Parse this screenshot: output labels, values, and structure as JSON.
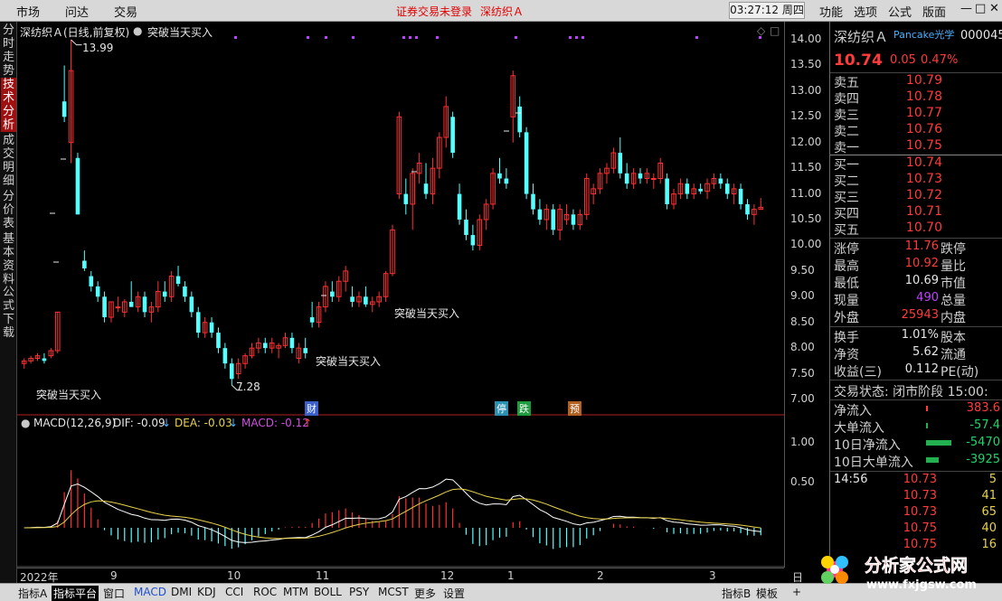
{
  "topbar": {
    "menus": [
      "市场",
      "问达",
      "交易"
    ],
    "status": "证券交易未登录",
    "stock": "深纺织Ａ",
    "clock": "03:27:12 周四",
    "right_menus": [
      "功能",
      "选项",
      "公式",
      "版面"
    ],
    "win_controls": [
      "—",
      "□",
      "✕"
    ]
  },
  "left_tabs": [
    {
      "label": "分时走势",
      "active": false
    },
    {
      "label": "技术分析",
      "active": true
    },
    {
      "label": "成交明细",
      "active": false
    },
    {
      "label": "分价表",
      "active": false
    },
    {
      "label": "基本资料",
      "active": false
    },
    {
      "label": "公式下载",
      "active": false
    }
  ],
  "chart_header": {
    "title": "深纺织Ａ(日线,前复权)",
    "indicator": "突破当天买入",
    "corner_icons": [
      "◇",
      "□"
    ]
  },
  "annotations": {
    "high": "13.99",
    "low": "7.28",
    "signal1": "突破当天买入",
    "signal2": "突破当天买入",
    "signal3": "突破当天买入"
  },
  "badges": [
    {
      "text": "财",
      "color": "#3a5fc8"
    },
    {
      "text": "停",
      "color": "#2a8fb0"
    },
    {
      "text": "跌",
      "color": "#1f9a3f"
    },
    {
      "text": "预",
      "color": "#b06020"
    }
  ],
  "macd_header": {
    "name": "MACD(12,26,9)",
    "dif": "DIF: -0.09",
    "dif_arrow": "↓",
    "dea": "DEA: -0.03",
    "dea_arrow": "↓",
    "macd": "MACD: -0.12",
    "macd_arrow": "↑"
  },
  "price_axis": [
    "14.00",
    "13.50",
    "13.00",
    "12.50",
    "12.00",
    "11.50",
    "11.00",
    "10.50",
    "10.00",
    "9.50",
    "9.00",
    "8.50",
    "8.00",
    "7.50",
    "7.00"
  ],
  "macd_axis": [
    "1.00",
    "0.50"
  ],
  "date_axis": [
    "2022年",
    "9",
    "10",
    "11",
    "12",
    "1",
    "2",
    "3"
  ],
  "quote": {
    "name": "深纺织Ａ",
    "tag": "Pancake光学",
    "code": "000045",
    "price": "10.74",
    "change": "0.05",
    "pct": "0.47%",
    "asks": [
      {
        "label": "卖五",
        "price": "10.79"
      },
      {
        "label": "卖四",
        "price": "10.78"
      },
      {
        "label": "卖三",
        "price": "10.77"
      },
      {
        "label": "卖二",
        "price": "10.76"
      },
      {
        "label": "卖一",
        "price": "10.75"
      }
    ],
    "bids": [
      {
        "label": "买一",
        "price": "10.74"
      },
      {
        "label": "买二",
        "price": "10.73"
      },
      {
        "label": "买三",
        "price": "10.72"
      },
      {
        "label": "买四",
        "price": "10.71"
      },
      {
        "label": "买五",
        "price": "10.70"
      }
    ],
    "stats": [
      {
        "label": "涨停",
        "value": "11.76",
        "cls": "red",
        "label2": "跌停"
      },
      {
        "label": "最高",
        "value": "10.92",
        "cls": "red",
        "label2": "量比"
      },
      {
        "label": "最低",
        "value": "10.69",
        "cls": "white",
        "label2": "市值"
      },
      {
        "label": "现量",
        "value": "490",
        "cls": "purple",
        "label2": "总量"
      },
      {
        "label": "外盘",
        "value": "25943",
        "cls": "red",
        "label2": "内盘"
      }
    ],
    "stats2": [
      {
        "label": "换手",
        "value": "1.01%",
        "label2": "股本"
      },
      {
        "label": "净资",
        "value": "5.62",
        "label2": "流通"
      },
      {
        "label": "收益(三)",
        "value": "0.112",
        "label2": "PE(动)"
      }
    ],
    "trade_state": "交易状态: 闭市阶段 15:00:",
    "flows": [
      {
        "label": "净流入",
        "value": "383.6",
        "cls": "red"
      },
      {
        "label": "大单流入",
        "value": "-57.4",
        "cls": "green"
      },
      {
        "label": "10日净流入",
        "value": "-5470",
        "cls": "green"
      },
      {
        "label": "10日大单流入",
        "value": "-3925",
        "cls": "green"
      }
    ],
    "ticks": [
      {
        "time": "14:56",
        "price": "10.73",
        "vol": "5"
      },
      {
        "time": "",
        "price": "10.73",
        "vol": "41"
      },
      {
        "time": "",
        "price": "10.73",
        "vol": "65"
      },
      {
        "time": "",
        "price": "10.75",
        "vol": "40"
      },
      {
        "time": "",
        "price": "10.75",
        "vol": "16"
      }
    ]
  },
  "bottom_tabs": [
    {
      "label": "指标A",
      "active": false,
      "blue": false
    },
    {
      "label": "指标平台",
      "active": true,
      "blue": false
    },
    {
      "label": "窗口",
      "active": false,
      "blue": false
    },
    {
      "label": "MACD",
      "active": false,
      "blue": true
    },
    {
      "label": "DMI",
      "active": false,
      "blue": false
    },
    {
      "label": "KDJ",
      "active": false,
      "blue": false
    },
    {
      "label": "CCI",
      "active": false,
      "blue": false
    },
    {
      "label": "ROC",
      "active": false,
      "blue": false
    },
    {
      "label": "MTM",
      "active": false,
      "blue": false
    },
    {
      "label": "BOLL",
      "active": false,
      "blue": false
    },
    {
      "label": "PSY",
      "active": false,
      "blue": false
    },
    {
      "label": "MCST",
      "active": false,
      "blue": false
    },
    {
      "label": "更多",
      "active": false,
      "blue": false
    },
    {
      "label": "设置",
      "active": false,
      "blue": false
    }
  ],
  "bottom_right_tabs": [
    "指标B",
    "模板",
    "+"
  ],
  "date_axis_right": "日线",
  "watermark": {
    "title": "分析家公式网",
    "url": "www.fxjgsw.com"
  },
  "chart_data": {
    "type": "candlestick",
    "ylim": [
      7.0,
      14.0
    ],
    "candles": [
      [
        7.7,
        7.8,
        7.6,
        7.75
      ],
      [
        7.75,
        7.85,
        7.7,
        7.8
      ],
      [
        7.8,
        7.9,
        7.75,
        7.85
      ],
      [
        7.8,
        7.9,
        7.7,
        7.75
      ],
      [
        7.85,
        8.0,
        7.8,
        7.95
      ],
      [
        7.95,
        8.7,
        7.9,
        8.7
      ],
      [
        12.8,
        13.5,
        12.4,
        12.5
      ],
      [
        12.0,
        14.0,
        11.6,
        13.4
      ],
      [
        11.7,
        11.8,
        10.6,
        10.6
      ],
      [
        9.7,
        9.9,
        9.5,
        9.55
      ],
      [
        9.4,
        9.5,
        9.1,
        9.2
      ],
      [
        9.2,
        9.3,
        8.9,
        9.0
      ],
      [
        9.0,
        9.1,
        8.5,
        8.6
      ],
      [
        8.6,
        8.9,
        8.5,
        8.9
      ],
      [
        8.8,
        9.0,
        8.7,
        8.8
      ],
      [
        8.7,
        8.95,
        8.6,
        8.9
      ],
      [
        8.9,
        9.3,
        8.8,
        8.8
      ],
      [
        8.8,
        9.1,
        8.7,
        9.0
      ],
      [
        9.0,
        9.1,
        8.6,
        8.7
      ],
      [
        8.7,
        8.9,
        8.5,
        8.8
      ],
      [
        8.8,
        9.3,
        8.7,
        9.1
      ],
      [
        9.1,
        9.3,
        8.9,
        9.0
      ],
      [
        9.0,
        9.5,
        8.9,
        9.4
      ],
      [
        9.4,
        9.6,
        9.2,
        9.25
      ],
      [
        9.2,
        9.3,
        8.9,
        9.0
      ],
      [
        9.0,
        9.1,
        8.6,
        8.7
      ],
      [
        8.7,
        8.8,
        8.2,
        8.3
      ],
      [
        8.3,
        8.6,
        8.2,
        8.5
      ],
      [
        8.5,
        8.6,
        8.2,
        8.3
      ],
      [
        8.3,
        8.4,
        7.9,
        8.0
      ],
      [
        8.0,
        8.1,
        7.6,
        7.7
      ],
      [
        7.7,
        7.8,
        7.28,
        7.4
      ],
      [
        7.5,
        7.8,
        7.4,
        7.7
      ],
      [
        7.7,
        7.9,
        7.6,
        7.85
      ],
      [
        7.85,
        8.1,
        7.8,
        8.0
      ],
      [
        8.0,
        8.2,
        7.9,
        8.1
      ],
      [
        8.1,
        8.2,
        7.9,
        8.0
      ],
      [
        8.0,
        8.2,
        7.9,
        8.1
      ],
      [
        8.0,
        8.1,
        7.8,
        8.05
      ],
      [
        8.05,
        8.3,
        8.0,
        8.2
      ],
      [
        8.2,
        8.3,
        7.9,
        8.0
      ],
      [
        7.8,
        8.1,
        7.7,
        8.0
      ],
      [
        8.0,
        8.2,
        7.8,
        7.9
      ],
      [
        8.6,
        8.9,
        8.4,
        8.5
      ],
      [
        8.5,
        8.9,
        8.4,
        8.8
      ],
      [
        8.8,
        9.3,
        8.7,
        9.2
      ],
      [
        9.1,
        9.3,
        8.9,
        9.0
      ],
      [
        9.0,
        9.4,
        8.9,
        9.3
      ],
      [
        9.3,
        9.6,
        9.1,
        9.5
      ],
      [
        9.0,
        9.2,
        8.8,
        8.9
      ],
      [
        8.9,
        9.1,
        8.8,
        9.0
      ],
      [
        9.0,
        9.2,
        8.8,
        8.85
      ],
      [
        8.85,
        9.0,
        8.7,
        8.9
      ],
      [
        8.9,
        9.1,
        8.8,
        9.0
      ],
      [
        9.0,
        9.5,
        8.9,
        9.45
      ],
      [
        9.45,
        10.4,
        9.4,
        10.3
      ],
      [
        11.0,
        12.6,
        10.9,
        12.5
      ],
      [
        11.0,
        11.3,
        10.6,
        10.8
      ],
      [
        10.8,
        11.5,
        10.3,
        11.4
      ],
      [
        11.4,
        11.8,
        11.2,
        11.6
      ],
      [
        11.2,
        11.6,
        10.9,
        11.0
      ],
      [
        11.0,
        11.7,
        10.8,
        11.5
      ],
      [
        11.5,
        12.2,
        11.3,
        12.1
      ],
      [
        12.1,
        12.9,
        11.9,
        12.7
      ],
      [
        12.5,
        12.6,
        11.7,
        11.8
      ],
      [
        11.0,
        11.2,
        10.4,
        10.5
      ],
      [
        10.5,
        10.7,
        10.1,
        10.2
      ],
      [
        10.2,
        10.4,
        9.9,
        10.0
      ],
      [
        10.0,
        10.6,
        9.9,
        10.5
      ],
      [
        10.5,
        10.9,
        10.3,
        10.8
      ],
      [
        10.8,
        11.5,
        10.7,
        11.4
      ],
      [
        11.4,
        11.7,
        11.2,
        11.3
      ],
      [
        11.3,
        11.5,
        11.1,
        11.2
      ],
      [
        12.5,
        13.4,
        12.0,
        13.3
      ],
      [
        12.7,
        12.9,
        12.1,
        12.2
      ],
      [
        12.2,
        12.3,
        10.9,
        11.0
      ],
      [
        11.0,
        11.2,
        10.6,
        10.7
      ],
      [
        10.7,
        10.9,
        10.4,
        10.5
      ],
      [
        10.5,
        10.8,
        10.3,
        10.7
      ],
      [
        10.7,
        10.8,
        10.2,
        10.3
      ],
      [
        10.3,
        10.8,
        10.1,
        10.7
      ],
      [
        10.5,
        10.8,
        10.4,
        10.6
      ],
      [
        10.6,
        10.7,
        10.3,
        10.4
      ],
      [
        10.4,
        10.7,
        10.3,
        10.6
      ],
      [
        10.6,
        11.4,
        10.5,
        11.3
      ],
      [
        11.0,
        11.2,
        10.8,
        11.1
      ],
      [
        11.1,
        11.5,
        11.0,
        11.4
      ],
      [
        11.4,
        11.6,
        11.2,
        11.5
      ],
      [
        11.5,
        11.9,
        11.4,
        11.8
      ],
      [
        11.8,
        12.1,
        11.3,
        11.4
      ],
      [
        11.4,
        11.6,
        11.1,
        11.2
      ],
      [
        11.2,
        11.5,
        11.1,
        11.4
      ],
      [
        11.4,
        11.5,
        11.2,
        11.3
      ],
      [
        11.3,
        11.5,
        11.2,
        11.4
      ],
      [
        11.3,
        11.4,
        11.1,
        11.3
      ],
      [
        11.3,
        11.7,
        11.2,
        11.6
      ],
      [
        11.3,
        11.4,
        10.7,
        10.8
      ],
      [
        10.8,
        11.1,
        10.7,
        11.0
      ],
      [
        11.0,
        11.3,
        10.9,
        11.2
      ],
      [
        11.2,
        11.3,
        10.9,
        11.0
      ],
      [
        11.0,
        11.2,
        10.9,
        11.1
      ],
      [
        11.1,
        11.2,
        11.0,
        11.05
      ],
      [
        11.05,
        11.3,
        10.9,
        11.2
      ],
      [
        11.2,
        11.4,
        11.1,
        11.3
      ],
      [
        11.3,
        11.4,
        11.1,
        11.2
      ],
      [
        11.2,
        11.3,
        10.9,
        11.0
      ],
      [
        11.0,
        11.2,
        10.8,
        11.1
      ],
      [
        11.1,
        11.2,
        10.7,
        10.8
      ],
      [
        10.8,
        10.9,
        10.5,
        10.6
      ],
      [
        10.6,
        10.8,
        10.4,
        10.7
      ],
      [
        10.7,
        10.92,
        10.69,
        10.74
      ]
    ]
  }
}
